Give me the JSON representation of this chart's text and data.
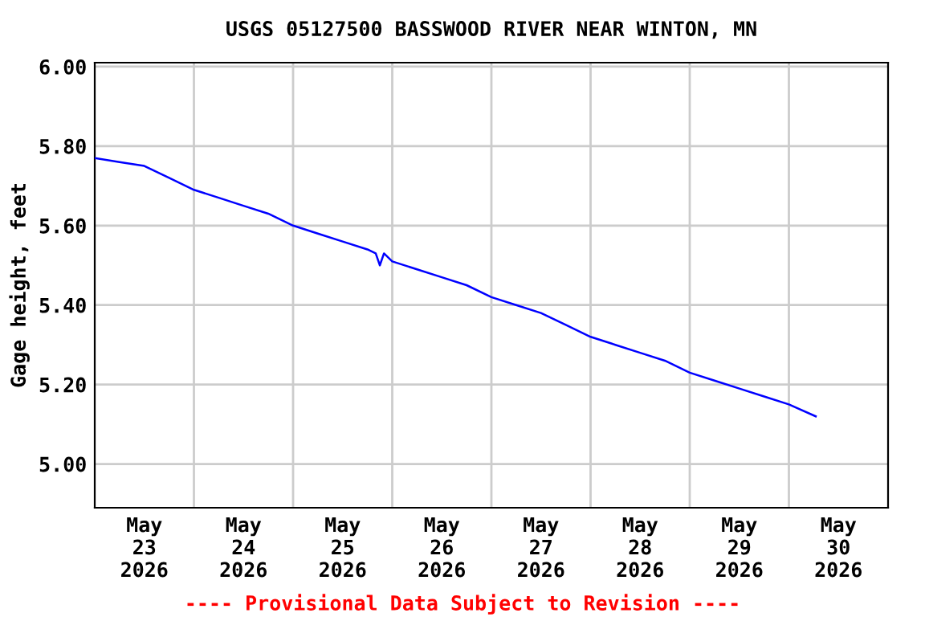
{
  "chart_data": {
    "type": "line",
    "title": "USGS 05127500 BASSWOOD RIVER NEAR WINTON, MN",
    "ylabel": "Gage height, feet",
    "annotations": [
      "---- Provisional Data Subject to Revision ----"
    ],
    "x": [
      "2026-05-23T00:00",
      "2026-05-23T06:00",
      "2026-05-23T12:00",
      "2026-05-23T18:00",
      "2026-05-24T00:00",
      "2026-05-24T06:00",
      "2026-05-24T12:00",
      "2026-05-24T18:00",
      "2026-05-25T00:00",
      "2026-05-25T06:00",
      "2026-05-25T12:00",
      "2026-05-25T18:00",
      "2026-05-25T20:00",
      "2026-05-25T21:00",
      "2026-05-25T22:00",
      "2026-05-26T00:00",
      "2026-05-26T06:00",
      "2026-05-26T12:00",
      "2026-05-26T18:00",
      "2026-05-27T00:00",
      "2026-05-27T06:00",
      "2026-05-27T12:00",
      "2026-05-27T18:00",
      "2026-05-28T00:00",
      "2026-05-28T06:00",
      "2026-05-28T12:00",
      "2026-05-28T18:00",
      "2026-05-29T00:00",
      "2026-05-29T06:00",
      "2026-05-29T12:00",
      "2026-05-29T18:00",
      "2026-05-30T00:00",
      "2026-05-30T06:30"
    ],
    "series": [
      {
        "color": "#0000ff",
        "values": [
          5.77,
          5.76,
          5.75,
          5.72,
          5.69,
          5.67,
          5.65,
          5.63,
          5.6,
          5.58,
          5.56,
          5.54,
          5.53,
          5.5,
          5.53,
          5.51,
          5.49,
          5.47,
          5.45,
          5.42,
          5.4,
          5.38,
          5.35,
          5.32,
          5.3,
          5.28,
          5.26,
          5.23,
          5.21,
          5.19,
          5.17,
          5.15,
          5.12
        ]
      }
    ],
    "xlim": [
      "2026-05-23T00:00",
      "2026-05-31T00:00"
    ],
    "xticks": [
      {
        "value": "2026-05-23T12:00",
        "label": "May\n23\n2026"
      },
      {
        "value": "2026-05-24T00:00",
        "label": null
      },
      {
        "value": "2026-05-24T12:00",
        "label": "May\n24\n2026"
      },
      {
        "value": "2026-05-25T00:00",
        "label": null
      },
      {
        "value": "2026-05-25T12:00",
        "label": "May\n25\n2026"
      },
      {
        "value": "2026-05-26T00:00",
        "label": null
      },
      {
        "value": "2026-05-26T12:00",
        "label": "May\n26\n2026"
      },
      {
        "value": "2026-05-27T00:00",
        "label": null
      },
      {
        "value": "2026-05-27T12:00",
        "label": "May\n27\n2026"
      },
      {
        "value": "2026-05-28T00:00",
        "label": null
      },
      {
        "value": "2026-05-28T12:00",
        "label": "May\n28\n2026"
      },
      {
        "value": "2026-05-29T00:00",
        "label": null
      },
      {
        "value": "2026-05-29T12:00",
        "label": "May\n29\n2026"
      },
      {
        "value": "2026-05-30T00:00",
        "label": null
      },
      {
        "value": "2026-05-30T12:00",
        "label": "May\n30\n2026"
      }
    ],
    "ylim": [
      4.89,
      6.01
    ],
    "yticks": [
      {
        "value": 5.0,
        "label": "5.00"
      },
      {
        "value": 5.2,
        "label": "5.20"
      },
      {
        "value": 5.4,
        "label": "5.40"
      },
      {
        "value": 5.6,
        "label": "5.60"
      },
      {
        "value": 5.8,
        "label": "5.80"
      },
      {
        "value": 6.0,
        "label": "6.00"
      }
    ],
    "grid": true,
    "legend": false,
    "line_style": "solid",
    "marker": "none"
  }
}
